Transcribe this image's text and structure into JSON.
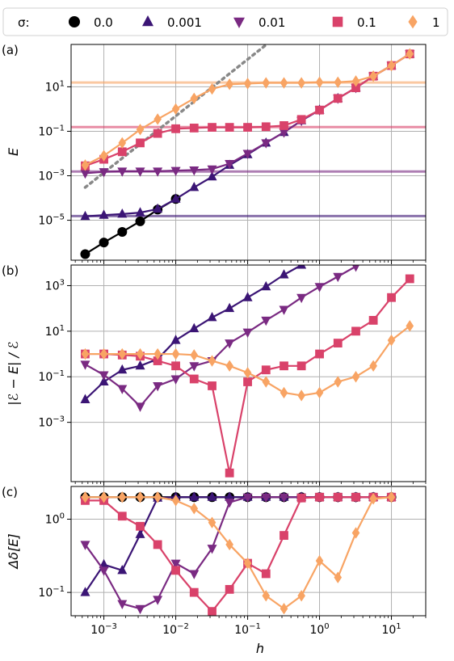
{
  "legend": {
    "title": "σ:",
    "entries": [
      {
        "label": "0.0",
        "color": "#000000",
        "marker": "circle"
      },
      {
        "label": "0.001",
        "color": "#3b1575",
        "marker": "triangle-up"
      },
      {
        "label": "0.01",
        "color": "#7a2a82",
        "marker": "triangle-down"
      },
      {
        "label": "0.1",
        "color": "#d9426a",
        "marker": "square"
      },
      {
        "label": "1",
        "color": "#f8a464",
        "marker": "diamond"
      }
    ]
  },
  "xlabel": "h",
  "chart_data": [
    {
      "type": "line",
      "panel": "(a)",
      "ylabel": "E",
      "xscale": "log",
      "yscale": "log",
      "xlim": [
        0.00035,
        30
      ],
      "ylim": [
        1.6e-07,
        800
      ],
      "xticks": [
        {
          "value": 0.001,
          "label": "10^-3"
        },
        {
          "value": 0.01,
          "label": "10^-2"
        },
        {
          "value": 0.1,
          "label": "10^-1"
        },
        {
          "value": 1,
          "label": "10^0"
        },
        {
          "value": 10,
          "label": "10^1"
        }
      ],
      "yticks": [
        {
          "value": 1e-05,
          "label": "10^-5"
        },
        {
          "value": 0.001,
          "label": "10^-3"
        },
        {
          "value": 0.1,
          "label": "10^-1"
        },
        {
          "value": 10,
          "label": "10^1"
        }
      ],
      "grid": true,
      "hlines": [
        {
          "y": 1.55e-05,
          "series": "0.001"
        },
        {
          "y": 0.00155,
          "series": "0.01"
        },
        {
          "y": 0.155,
          "series": "0.1"
        },
        {
          "y": 15.5,
          "series": "1"
        }
      ],
      "reference_line": {
        "style": "dotted",
        "color": "#888888",
        "x": [
          0.00055,
          0.2
        ],
        "y": [
          0.0003,
          1000
        ]
      },
      "series": [
        {
          "name": "0.0",
          "x": [
            0.00055,
            0.001,
            0.0018,
            0.0032,
            0.0056,
            0.01
          ],
          "y": [
            3e-07,
            1e-06,
            3e-06,
            9e-06,
            3e-05,
            9e-05
          ]
        },
        {
          "name": "0.001",
          "x": [
            0.00055,
            0.001,
            0.0018,
            0.0032,
            0.0056,
            0.01,
            0.018,
            0.032,
            0.056,
            0.1,
            0.18,
            0.32,
            0.56,
            1.0,
            1.8,
            3.2,
            5.6,
            10,
            18
          ],
          "y": [
            1.5e-05,
            1.7e-05,
            1.9e-05,
            2.2e-05,
            3.2e-05,
            9e-05,
            0.0003,
            0.0009,
            0.003,
            0.009,
            0.03,
            0.09,
            0.3,
            0.9,
            3,
            9,
            30,
            90,
            300
          ]
        },
        {
          "name": "0.01",
          "x": [
            0.00055,
            0.001,
            0.0018,
            0.0032,
            0.0056,
            0.01,
            0.018,
            0.032,
            0.056,
            0.1,
            0.18,
            0.32,
            0.56,
            1.0,
            1.8,
            3.2,
            5.6,
            10,
            18
          ],
          "y": [
            0.0013,
            0.0015,
            0.0016,
            0.0016,
            0.0016,
            0.0017,
            0.0018,
            0.002,
            0.0035,
            0.01,
            0.03,
            0.09,
            0.3,
            0.9,
            3,
            9,
            30,
            90,
            300
          ]
        },
        {
          "name": "0.1",
          "x": [
            0.00055,
            0.001,
            0.0018,
            0.0032,
            0.0056,
            0.01,
            0.018,
            0.032,
            0.056,
            0.1,
            0.18,
            0.32,
            0.56,
            1.0,
            1.8,
            3.2,
            5.6,
            10,
            18
          ],
          "y": [
            0.0028,
            0.0055,
            0.012,
            0.03,
            0.08,
            0.13,
            0.14,
            0.15,
            0.15,
            0.15,
            0.16,
            0.18,
            0.34,
            0.9,
            3,
            9,
            30,
            90,
            300
          ]
        },
        {
          "name": "1",
          "x": [
            0.00055,
            0.001,
            0.0018,
            0.0032,
            0.0056,
            0.01,
            0.018,
            0.032,
            0.056,
            0.1,
            0.18,
            0.32,
            0.56,
            1.0,
            1.8,
            3.2,
            5.6,
            10,
            18
          ],
          "y": [
            0.003,
            0.008,
            0.03,
            0.12,
            0.35,
            1,
            3,
            8,
            13,
            14,
            15,
            15,
            15,
            16,
            16,
            18,
            30,
            90,
            300
          ]
        }
      ]
    },
    {
      "type": "line",
      "panel": "(b)",
      "ylabel": "|ℰ − E| / ℰ",
      "xscale": "log",
      "yscale": "log",
      "xlim": [
        0.00035,
        30
      ],
      "ylim": [
        2.5e-06,
        8000
      ],
      "xticks": [
        {
          "value": 0.001,
          "label": "10^-3"
        },
        {
          "value": 0.01,
          "label": "10^-2"
        },
        {
          "value": 0.1,
          "label": "10^-1"
        },
        {
          "value": 1,
          "label": "10^0"
        },
        {
          "value": 10,
          "label": "10^1"
        }
      ],
      "yticks": [
        {
          "value": 0.001,
          "label": "10^-3"
        },
        {
          "value": 0.1,
          "label": "10^-1"
        },
        {
          "value": 10,
          "label": "10^1"
        },
        {
          "value": 1000,
          "label": "10^3"
        }
      ],
      "grid": true,
      "series": [
        {
          "name": "0.001",
          "x": [
            0.00055,
            0.001,
            0.0018,
            0.0032,
            0.0056,
            0.01,
            0.018,
            0.032,
            0.056,
            0.1,
            0.18,
            0.32,
            0.56,
            1.0
          ],
          "y": [
            0.01,
            0.06,
            0.2,
            0.3,
            0.6,
            4,
            13,
            40,
            100,
            300,
            900,
            3000,
            8000,
            20000
          ]
        },
        {
          "name": "0.01",
          "x": [
            0.00055,
            0.001,
            0.0018,
            0.0032,
            0.0056,
            0.01,
            0.018,
            0.032,
            0.056,
            0.1,
            0.18,
            0.32,
            0.56,
            1.0,
            1.8,
            3.2,
            5.6
          ],
          "y": [
            0.35,
            0.12,
            0.03,
            0.005,
            0.04,
            0.08,
            0.3,
            0.5,
            3,
            9,
            30,
            90,
            300,
            900,
            2500,
            7000,
            20000
          ]
        },
        {
          "name": "0.1",
          "x": [
            0.00055,
            0.001,
            0.0018,
            0.0032,
            0.0056,
            0.01,
            0.018,
            0.032,
            0.056,
            0.1,
            0.18,
            0.32,
            0.56,
            1.0,
            1.8,
            3.2,
            5.6,
            10,
            18
          ],
          "y": [
            1,
            1,
            0.9,
            0.8,
            0.5,
            0.3,
            0.08,
            0.04,
            6e-06,
            0.06,
            0.2,
            0.3,
            0.3,
            1,
            3,
            10,
            30,
            300,
            2000
          ]
        },
        {
          "name": "1",
          "x": [
            0.00055,
            0.001,
            0.0018,
            0.0032,
            0.0056,
            0.01,
            0.018,
            0.032,
            0.056,
            0.1,
            0.18,
            0.32,
            0.56,
            1.0,
            1.8,
            3.2,
            5.6,
            10,
            18
          ],
          "y": [
            1,
            1,
            1,
            1,
            1,
            1,
            0.9,
            0.5,
            0.3,
            0.15,
            0.06,
            0.02,
            0.015,
            0.02,
            0.06,
            0.1,
            0.3,
            4,
            17
          ]
        }
      ]
    },
    {
      "type": "line",
      "panel": "(c)",
      "ylabel": "Δδ[E]",
      "xscale": "log",
      "yscale": "log",
      "xlim": [
        0.00035,
        30
      ],
      "ylim": [
        0.048,
        2.8
      ],
      "xticks": [
        {
          "value": 0.001,
          "label": "10^-3"
        },
        {
          "value": 0.01,
          "label": "10^-2"
        },
        {
          "value": 0.1,
          "label": "10^-1"
        },
        {
          "value": 1,
          "label": "10^0"
        },
        {
          "value": 10,
          "label": "10^1"
        }
      ],
      "yticks": [
        {
          "value": 0.1,
          "label": "10^-1"
        },
        {
          "value": 1,
          "label": "10^0"
        }
      ],
      "grid": true,
      "series": [
        {
          "name": "0.0",
          "x": [
            0.00055,
            0.001,
            0.0018,
            0.0032,
            0.0056,
            0.01,
            0.018,
            0.032,
            0.056,
            0.1,
            0.18,
            0.32,
            0.56,
            1.0,
            1.8,
            3.2,
            5.6,
            10
          ],
          "y": [
            2,
            2,
            2,
            2,
            2,
            2,
            2,
            2,
            2,
            2,
            2,
            2,
            2,
            2,
            2,
            2,
            2,
            2
          ]
        },
        {
          "name": "0.001",
          "x": [
            0.00055,
            0.001,
            0.0018,
            0.0032,
            0.0056,
            0.01,
            0.018,
            0.032,
            0.056,
            0.1,
            0.18,
            0.32,
            0.56,
            1.0,
            1.8,
            3.2,
            5.6,
            10
          ],
          "y": [
            0.1,
            0.24,
            0.2,
            0.62,
            1.95,
            2,
            2,
            2,
            2,
            2,
            2,
            2,
            2,
            2,
            2,
            2,
            2,
            2
          ]
        },
        {
          "name": "0.01",
          "x": [
            0.00055,
            0.001,
            0.0018,
            0.0032,
            0.0056,
            0.01,
            0.018,
            0.032,
            0.056,
            0.1,
            0.18,
            0.32,
            0.56,
            1.0,
            1.8,
            3.2,
            5.6,
            10
          ],
          "y": [
            0.45,
            0.2,
            0.07,
            0.06,
            0.08,
            0.25,
            0.18,
            0.4,
            1.7,
            2,
            2,
            2,
            2,
            2,
            2,
            2,
            2,
            2
          ]
        },
        {
          "name": "0.1",
          "x": [
            0.00055,
            0.001,
            0.0018,
            0.0032,
            0.0056,
            0.01,
            0.018,
            0.032,
            0.056,
            0.1,
            0.18,
            0.32,
            0.56,
            1.0,
            1.8,
            3.2,
            5.6,
            10
          ],
          "y": [
            1.8,
            1.8,
            1.1,
            0.8,
            0.45,
            0.2,
            0.1,
            0.055,
            0.11,
            0.25,
            0.18,
            0.6,
            1.95,
            2,
            2,
            2,
            2,
            2
          ]
        },
        {
          "name": "1",
          "x": [
            0.00055,
            0.001,
            0.0018,
            0.0032,
            0.0056,
            0.01,
            0.018,
            0.032,
            0.056,
            0.1,
            0.18,
            0.32,
            0.56,
            1.0,
            1.8,
            3.2,
            5.6,
            10
          ],
          "y": [
            2,
            2,
            2,
            2,
            2,
            1.8,
            1.4,
            0.9,
            0.45,
            0.25,
            0.09,
            0.06,
            0.09,
            0.27,
            0.16,
            0.65,
            1.9,
            2
          ]
        }
      ]
    }
  ]
}
